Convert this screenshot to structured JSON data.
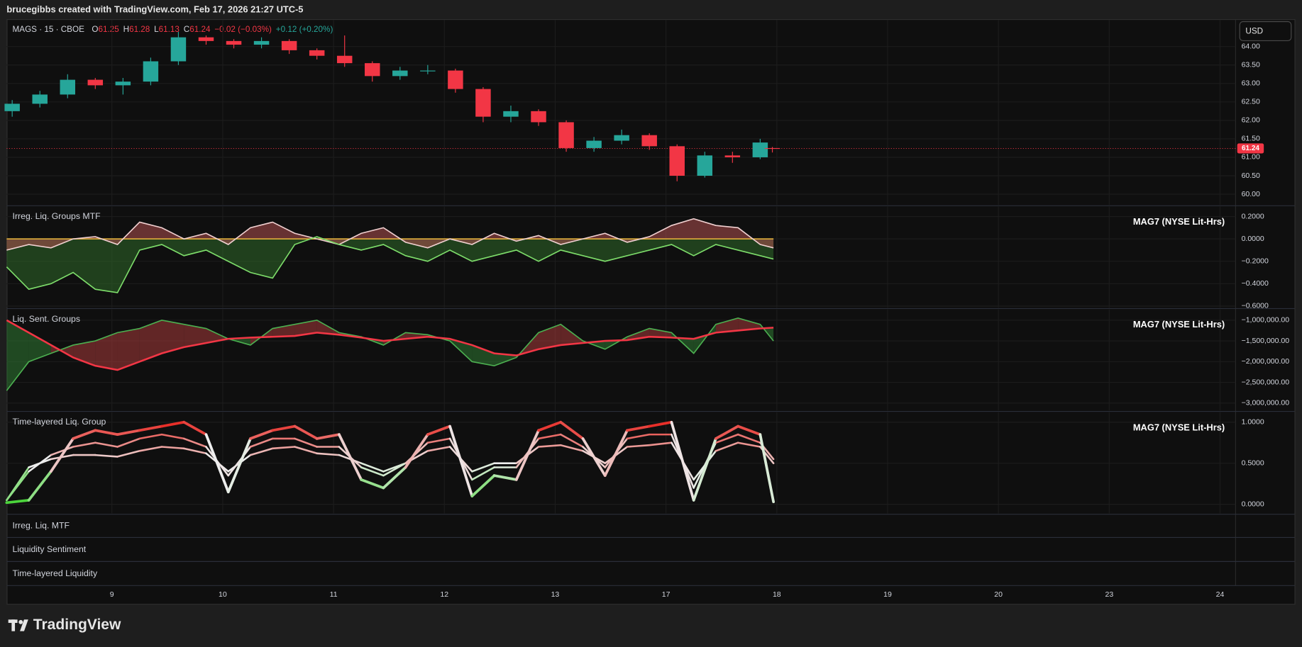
{
  "header": {
    "text": "brucegibbs created with TradingView.com, Feb 17, 2026 21:27 UTC-5",
    "symbol": "MAGS · 15 · CBOE",
    "ohlc": [
      {
        "label": "O",
        "value": 61.25
      },
      {
        "label": "H",
        "value": 61.28
      },
      {
        "label": "L",
        "value": 61.13
      },
      {
        "label": "C",
        "value": 61.24
      }
    ],
    "change": "−0.02 (−0.03%)",
    "ext_change": "+0.12 (+0.20%)",
    "currency": "USD"
  },
  "chart_data": [
    {
      "type": "candlestick",
      "last_price": 61.24,
      "last_price_color": "#f23645",
      "up_color": "#26a69a",
      "down_color": "#f23645",
      "x": [
        0.1,
        0.35,
        0.6,
        0.85,
        1.1,
        1.35,
        1.6,
        1.85,
        2.1,
        2.35,
        2.6,
        2.85,
        3.1,
        3.35,
        3.6,
        3.85,
        4.1,
        4.35,
        4.6,
        4.85,
        5.1,
        5.35,
        5.6,
        5.85,
        6.1,
        6.35,
        6.6,
        6.85,
        6.96
      ],
      "open": [
        62.25,
        62.45,
        62.7,
        63.1,
        62.95,
        63.05,
        63.6,
        64.25,
        64.15,
        64.05,
        64.15,
        63.9,
        63.75,
        63.55,
        63.2,
        63.35,
        63.35,
        62.85,
        62.1,
        62.25,
        61.95,
        61.25,
        61.45,
        61.6,
        61.3,
        60.5,
        61.05,
        61.0,
        61.25
      ],
      "high": [
        62.55,
        62.8,
        63.25,
        63.15,
        63.15,
        63.7,
        64.4,
        64.3,
        64.2,
        64.25,
        64.2,
        63.95,
        64.3,
        63.6,
        63.45,
        63.5,
        63.4,
        62.9,
        62.4,
        62.3,
        62.0,
        61.55,
        61.75,
        61.65,
        61.35,
        61.15,
        61.15,
        61.5,
        61.28
      ],
      "low": [
        62.1,
        62.35,
        62.6,
        62.85,
        62.7,
        62.95,
        63.5,
        64.05,
        63.95,
        63.95,
        63.8,
        63.65,
        63.45,
        63.05,
        63.1,
        63.25,
        62.75,
        61.95,
        61.95,
        61.85,
        61.15,
        61.15,
        61.35,
        61.2,
        60.35,
        60.45,
        60.85,
        60.95,
        61.13
      ],
      "close": [
        62.45,
        62.7,
        63.1,
        62.95,
        63.05,
        63.6,
        64.25,
        64.15,
        64.05,
        64.15,
        63.9,
        63.75,
        63.55,
        63.2,
        63.35,
        63.35,
        62.85,
        62.1,
        62.25,
        61.95,
        61.25,
        61.45,
        61.6,
        61.3,
        60.5,
        61.05,
        61.0,
        61.4,
        61.24
      ],
      "xlim": [
        0.05,
        11.14
      ],
      "xticks": [
        {
          "value": 1,
          "label": "9"
        },
        {
          "value": 2,
          "label": "10"
        },
        {
          "value": 3,
          "label": "11"
        },
        {
          "value": 4,
          "label": "12"
        },
        {
          "value": 5,
          "label": "13"
        },
        {
          "value": 6,
          "label": "17"
        },
        {
          "value": 7,
          "label": "18"
        },
        {
          "value": 8,
          "label": "19"
        },
        {
          "value": 9,
          "label": "20"
        },
        {
          "value": 10,
          "label": "23"
        },
        {
          "value": 11,
          "label": "24"
        }
      ],
      "ylim": [
        59.71,
        64.72
      ],
      "yticks": [
        {
          "value": 60,
          "label": "60.00"
        },
        {
          "value": 60.5,
          "label": "60.50"
        },
        {
          "value": 61,
          "label": "61.00"
        },
        {
          "value": 61.5,
          "label": "61.50"
        },
        {
          "value": 62,
          "label": "62.00"
        },
        {
          "value": 62.5,
          "label": "62.50"
        },
        {
          "value": 63,
          "label": "63.00"
        },
        {
          "value": 63.5,
          "label": "63.50"
        },
        {
          "value": 64,
          "label": "64.00"
        }
      ],
      "grid": true
    },
    {
      "type": "area_line",
      "title": "Irreg. Liq. Groups MTF",
      "subtitle": "MAG7 (NYSE Lit-Hrs)",
      "hline": 0,
      "hline_color": "#d4a53a",
      "x": [
        0.05,
        0.25,
        0.45,
        0.65,
        0.85,
        1.05,
        1.25,
        1.45,
        1.65,
        1.85,
        2.05,
        2.25,
        2.45,
        2.65,
        2.85,
        3.05,
        3.25,
        3.45,
        3.65,
        3.85,
        4.05,
        4.25,
        4.45,
        4.65,
        4.85,
        5.05,
        5.25,
        5.45,
        5.65,
        5.85,
        6.05,
        6.25,
        6.45,
        6.65,
        6.85,
        6.97
      ],
      "series": [
        {
          "color": "#f0d0d0",
          "fill": "#b05050",
          "values": [
            -0.1,
            -0.05,
            -0.08,
            0.0,
            0.02,
            -0.05,
            0.15,
            0.1,
            0.0,
            0.05,
            -0.05,
            0.1,
            0.15,
            0.05,
            0.0,
            -0.05,
            0.05,
            0.1,
            -0.03,
            -0.08,
            0.0,
            -0.05,
            0.05,
            -0.02,
            0.03,
            -0.05,
            0.0,
            0.05,
            -0.03,
            0.02,
            0.12,
            0.18,
            0.12,
            0.1,
            -0.05,
            -0.08
          ]
        },
        {
          "color": "#7ddc6a",
          "fill": "#2f6a2a",
          "values": [
            -0.25,
            -0.45,
            -0.4,
            -0.3,
            -0.45,
            -0.48,
            -0.1,
            -0.05,
            -0.15,
            -0.1,
            -0.2,
            -0.3,
            -0.35,
            -0.05,
            0.02,
            -0.05,
            -0.1,
            -0.05,
            -0.15,
            -0.2,
            -0.1,
            -0.2,
            -0.15,
            -0.1,
            -0.2,
            -0.1,
            -0.15,
            -0.2,
            -0.15,
            -0.1,
            -0.05,
            -0.15,
            -0.05,
            -0.1,
            -0.15,
            -0.18
          ]
        }
      ],
      "ylim": [
        -0.615,
        0.289
      ],
      "yticks": [
        {
          "value": 0.2,
          "label": "0.2000"
        },
        {
          "value": 0,
          "label": "0.0000"
        },
        {
          "value": -0.2,
          "label": "−0.2000"
        },
        {
          "value": -0.4,
          "label": "−0.4000"
        },
        {
          "value": -0.6,
          "label": "−0.6000"
        }
      ]
    },
    {
      "type": "band_line",
      "title": "Liq. Sent. Groups",
      "subtitle": "MAG7 (NYSE Lit-Hrs)",
      "band_colors": [
        "#a83a3a",
        "#2f7a33"
      ],
      "x": [
        0.05,
        0.25,
        0.45,
        0.65,
        0.85,
        1.05,
        1.25,
        1.45,
        1.65,
        1.85,
        2.05,
        2.25,
        2.45,
        2.65,
        2.85,
        3.05,
        3.25,
        3.45,
        3.65,
        3.85,
        4.05,
        4.25,
        4.45,
        4.65,
        4.85,
        5.05,
        5.25,
        5.45,
        5.65,
        5.85,
        6.05,
        6.25,
        6.45,
        6.65,
        6.85,
        6.97
      ],
      "series": [
        {
          "color": "#f23645",
          "values": [
            -1000000,
            -1300000,
            -1600000,
            -1900000,
            -2100000,
            -2200000,
            -2000000,
            -1800000,
            -1650000,
            -1550000,
            -1450000,
            -1420000,
            -1400000,
            -1380000,
            -1300000,
            -1350000,
            -1420000,
            -1500000,
            -1450000,
            -1400000,
            -1450000,
            -1600000,
            -1800000,
            -1850000,
            -1700000,
            -1600000,
            -1550000,
            -1500000,
            -1480000,
            -1400000,
            -1420000,
            -1450000,
            -1300000,
            -1250000,
            -1200000,
            -1180000
          ]
        },
        {
          "color": "#4caf50",
          "values": [
            -2700000,
            -2000000,
            -1800000,
            -1600000,
            -1500000,
            -1300000,
            -1200000,
            -1000000,
            -1100000,
            -1200000,
            -1450000,
            -1600000,
            -1200000,
            -1100000,
            -1000000,
            -1300000,
            -1400000,
            -1600000,
            -1300000,
            -1350000,
            -1500000,
            -2000000,
            -2100000,
            -1900000,
            -1300000,
            -1100000,
            -1500000,
            -1700000,
            -1400000,
            -1200000,
            -1300000,
            -1800000,
            -1100000,
            -950000,
            -1100000,
            -1500000
          ]
        }
      ],
      "ylim": [
        -3180000,
        -740000
      ],
      "yticks": [
        {
          "value": -1000000,
          "label": "−1,000,000.00"
        },
        {
          "value": -1500000,
          "label": "−1,500,000.00"
        },
        {
          "value": -2000000,
          "label": "−2,000,000.00"
        },
        {
          "value": -2500000,
          "label": "−2,500,000.00"
        },
        {
          "value": -3000000,
          "label": "−3,000,000.00"
        }
      ]
    },
    {
      "type": "gradient_line",
      "title": "Time-layered Liq. Group",
      "subtitle": "MAG7 (NYSE Lit-Hrs)",
      "gradient": [
        "#3fd22e",
        "#eeeeee",
        "#e8251f"
      ],
      "x": [
        0.05,
        0.25,
        0.45,
        0.65,
        0.85,
        1.05,
        1.25,
        1.45,
        1.65,
        1.85,
        2.05,
        2.25,
        2.45,
        2.65,
        2.85,
        3.05,
        3.25,
        3.45,
        3.65,
        3.85,
        4.05,
        4.25,
        4.45,
        4.65,
        4.85,
        5.05,
        5.25,
        5.45,
        5.65,
        5.85,
        6.05,
        6.25,
        6.45,
        6.65,
        6.85,
        6.97
      ],
      "series": [
        {
          "values": [
            0.02,
            0.05,
            0.4,
            0.8,
            0.9,
            0.85,
            0.9,
            0.95,
            1.0,
            0.85,
            0.15,
            0.8,
            0.9,
            0.95,
            0.8,
            0.85,
            0.3,
            0.2,
            0.45,
            0.85,
            0.95,
            0.1,
            0.35,
            0.3,
            0.9,
            1.0,
            0.8,
            0.35,
            0.9,
            0.95,
            1.0,
            0.05,
            0.8,
            0.95,
            0.85,
            0.03
          ]
        },
        {
          "values": [
            0.05,
            0.4,
            0.6,
            0.7,
            0.75,
            0.7,
            0.8,
            0.85,
            0.8,
            0.7,
            0.35,
            0.7,
            0.8,
            0.8,
            0.7,
            0.7,
            0.45,
            0.35,
            0.5,
            0.75,
            0.8,
            0.3,
            0.45,
            0.45,
            0.8,
            0.85,
            0.7,
            0.45,
            0.8,
            0.85,
            0.85,
            0.2,
            0.75,
            0.85,
            0.75,
            0.55
          ]
        },
        {
          "values": [
            0.05,
            0.45,
            0.55,
            0.6,
            0.6,
            0.58,
            0.65,
            0.7,
            0.68,
            0.62,
            0.4,
            0.6,
            0.68,
            0.7,
            0.62,
            0.6,
            0.5,
            0.4,
            0.5,
            0.65,
            0.7,
            0.4,
            0.5,
            0.5,
            0.7,
            0.72,
            0.65,
            0.5,
            0.7,
            0.72,
            0.75,
            0.3,
            0.65,
            0.75,
            0.7,
            0.5
          ]
        }
      ],
      "ylim": [
        -0.111,
        1.121
      ],
      "yticks": [
        {
          "value": 1,
          "label": "1.0000"
        },
        {
          "value": 0.5,
          "label": "0.5000"
        },
        {
          "value": 0,
          "label": "0.0000"
        }
      ]
    }
  ],
  "collapsed_panes": [
    "Irreg. Liq. MTF",
    "Liquidity Sentiment",
    "Time-layered Liquidity"
  ],
  "footer": {
    "logo": "TradingView"
  }
}
